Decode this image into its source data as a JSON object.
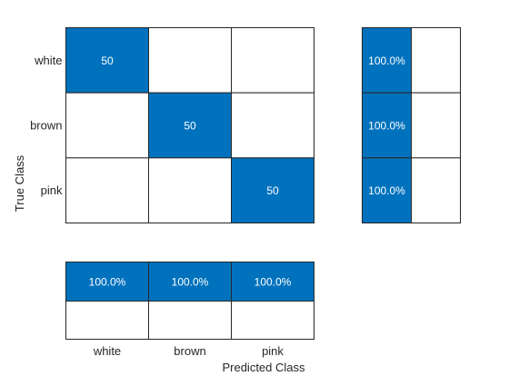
{
  "chart_data": {
    "type": "heatmap",
    "title": "",
    "xlabel": "Predicted Class",
    "ylabel": "True Class",
    "categories": [
      "white",
      "brown",
      "pink"
    ],
    "confusion_matrix": [
      [
        50,
        null,
        null
      ],
      [
        null,
        50,
        null
      ],
      [
        null,
        null,
        50
      ]
    ],
    "row_summary": [
      "100.0%",
      "100.0%",
      "100.0%"
    ],
    "column_summary": [
      "100.0%",
      "100.0%",
      "100.0%"
    ],
    "colors": {
      "filled": "#0072bd",
      "empty": "#ffffff",
      "grid": "#262626",
      "text_on_fill": "#ffffff",
      "label": "#262626"
    }
  }
}
